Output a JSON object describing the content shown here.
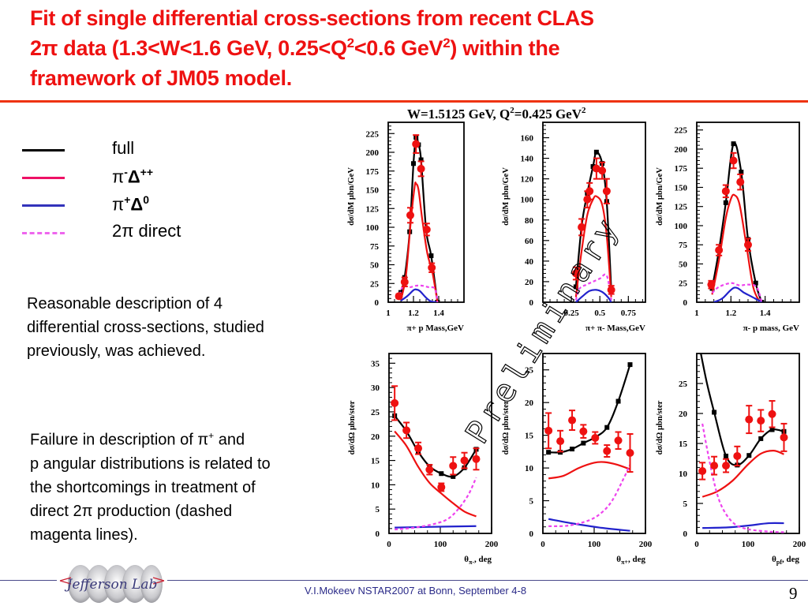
{
  "slide": {
    "title_line1": "Fit of single differential cross-sections from  recent CLAS",
    "title_line2_a": "2π data (1.3<W<1.6 GeV, 0.25<Q",
    "title_line2_sup1": "2",
    "title_line2_b": "<0.6 GeV",
    "title_line2_sup2": "2",
    "title_line2_c": ") within the",
    "title_line3": "framework of JM05 model.",
    "accent_color": "#ee1111",
    "watermark": "Preliminary",
    "kinematics_a": "W=1.5125 GeV, Q",
    "kinematics_sup1": "2",
    "kinematics_b": "=0.425 GeV",
    "kinematics_sup2": "2"
  },
  "legend": [
    {
      "label": "full",
      "color": "#000000",
      "style": "solid"
    },
    {
      "label_main": "π",
      "label_sup1": "-",
      "label_delta": "Δ",
      "label_sup2": "++",
      "color": "#ee1166",
      "style": "solid"
    },
    {
      "label_main": "π",
      "label_sup1": "+",
      "label_delta": "Δ",
      "label_sup2": "0",
      "color": "#3333bb",
      "style": "solid"
    },
    {
      "label": "2π direct",
      "color": "#ee66ee",
      "style": "dashed"
    }
  ],
  "notes": {
    "note1_lines": [
      "Reasonable description of 4",
      "differential cross-sections, studied",
      "previously, was achieved."
    ],
    "note2_line1_a": "Failure in description of π",
    "note2_line1_sup": "+",
    "note2_line1_b": " and",
    "note2_lines": [
      "p angular distributions is related to",
      "the shortcomings in treatment of",
      "direct 2π production (dashed",
      "magenta lines)."
    ]
  },
  "footer": {
    "logo_text": "Jefferson Lab",
    "text": "V.I.Mokeev   NSTAR2007 at Bonn, September  4-8",
    "page": "9"
  },
  "chart_data": [
    {
      "type": "line",
      "title": "",
      "xlabel": "π+ p Mass,GeV",
      "ylabel": "dσ/dM μbn/GeV",
      "xlim": [
        1.0,
        1.6
      ],
      "ylim": [
        0,
        240
      ],
      "xticks": [
        "1",
        "1.2",
        "1.4"
      ],
      "xtick_values": [
        1.0,
        1.2,
        1.4
      ],
      "yticks": [
        "0",
        "25",
        "50",
        "75",
        "100",
        "125",
        "150",
        "175",
        "200",
        "225"
      ],
      "ytick_values": [
        0,
        25,
        50,
        75,
        100,
        125,
        150,
        175,
        200,
        225
      ],
      "data_points": {
        "x": [
          1.085,
          1.13,
          1.175,
          1.22,
          1.26,
          1.305,
          1.345
        ],
        "y": [
          8,
          27,
          116,
          211,
          178,
          97,
          46
        ],
        "err": [
          3,
          6,
          10,
          12,
          10,
          8,
          6
        ]
      },
      "series": [
        {
          "name": "full",
          "color": "#000000",
          "x": [
            1.1,
            1.13,
            1.17,
            1.2,
            1.22,
            1.24,
            1.26,
            1.3,
            1.34,
            1.39
          ],
          "y": [
            13,
            33,
            94,
            185,
            220,
            210,
            190,
            97,
            62,
            0
          ],
          "markers": true
        },
        {
          "name": "π-Δ++",
          "color": "#ee1111",
          "x": [
            1.1,
            1.14,
            1.18,
            1.21,
            1.22,
            1.24,
            1.27,
            1.31,
            1.35,
            1.39
          ],
          "y": [
            3,
            35,
            110,
            155,
            158,
            150,
            110,
            65,
            40,
            0
          ]
        },
        {
          "name": "π+Δ0",
          "color": "#2222cc",
          "x": [
            1.1,
            1.15,
            1.2,
            1.22,
            1.25,
            1.3,
            1.34,
            1.39
          ],
          "y": [
            2,
            8,
            16,
            17,
            15,
            6,
            1,
            0
          ]
        },
        {
          "name": "2π direct",
          "color": "#ee44ee",
          "dashed": true,
          "x": [
            1.09,
            1.12,
            1.17,
            1.22,
            1.27,
            1.32,
            1.37,
            1.39
          ],
          "y": [
            10,
            22,
            20,
            22,
            22,
            20,
            18,
            0
          ]
        }
      ]
    },
    {
      "type": "line",
      "title": "",
      "xlabel": "π+ π- Mass,GeV",
      "ylabel": "dσ/dM μbn/GeV",
      "xlim": [
        0.0,
        0.9
      ],
      "ylim": [
        0,
        175
      ],
      "xticks": [
        "0.25",
        "0.5",
        "0.75"
      ],
      "xtick_values": [
        0.25,
        0.5,
        0.75
      ],
      "yticks": [
        "0",
        "20",
        "40",
        "60",
        "80",
        "100",
        "120",
        "140",
        "160"
      ],
      "ytick_values": [
        0,
        20,
        40,
        60,
        80,
        100,
        120,
        140,
        160
      ],
      "data_points": {
        "x": [
          0.29,
          0.34,
          0.39,
          0.41,
          0.47,
          0.52,
          0.56,
          0.6
        ],
        "y": [
          28,
          73,
          100,
          108,
          130,
          128,
          108,
          12
        ],
        "err": [
          6,
          8,
          8,
          8,
          10,
          8,
          12,
          4
        ]
      },
      "series": [
        {
          "name": "full",
          "color": "#000000",
          "x": [
            0.29,
            0.34,
            0.39,
            0.44,
            0.47,
            0.52,
            0.56,
            0.6
          ],
          "y": [
            15,
            74,
            106,
            132,
            146,
            135,
            98,
            12
          ],
          "markers": true
        },
        {
          "name": "π-Δ++",
          "color": "#ee1111",
          "x": [
            0.29,
            0.34,
            0.39,
            0.44,
            0.47,
            0.52,
            0.56,
            0.6
          ],
          "y": [
            5,
            50,
            85,
            100,
            103,
            95,
            65,
            5
          ]
        },
        {
          "name": "π+Δ0",
          "color": "#2222cc",
          "x": [
            0.29,
            0.35,
            0.41,
            0.47,
            0.52,
            0.57,
            0.6
          ],
          "y": [
            0,
            6,
            11,
            12,
            10,
            5,
            0
          ]
        },
        {
          "name": "2π direct",
          "color": "#ee44ee",
          "dashed": true,
          "x": [
            0.29,
            0.32,
            0.38,
            0.44,
            0.5,
            0.56,
            0.6
          ],
          "y": [
            2,
            13,
            17,
            20,
            23,
            26,
            2
          ]
        }
      ]
    },
    {
      "type": "line",
      "title": "",
      "xlabel": "π- p mass, GeV",
      "ylabel": "dσ/dM μbn/GeV",
      "xlim": [
        1.0,
        1.6
      ],
      "ylim": [
        0,
        235
      ],
      "xticks": [
        "1",
        "1.2",
        "1.4"
      ],
      "xtick_values": [
        1.0,
        1.2,
        1.4
      ],
      "yticks": [
        "0",
        "25",
        "50",
        "75",
        "100",
        "125",
        "150",
        "175",
        "200",
        "225"
      ],
      "ytick_values": [
        0,
        25,
        50,
        75,
        100,
        125,
        150,
        175,
        200,
        225
      ],
      "data_points": {
        "x": [
          1.085,
          1.13,
          1.17,
          1.215,
          1.255,
          1.3
        ],
        "y": [
          23,
          68,
          145,
          185,
          157,
          75
        ],
        "err": [
          5,
          7,
          8,
          10,
          10,
          8
        ]
      },
      "series": [
        {
          "name": "full",
          "color": "#000000",
          "x": [
            1.09,
            1.13,
            1.17,
            1.215,
            1.26,
            1.3,
            1.345,
            1.38
          ],
          "y": [
            18,
            68,
            130,
            207,
            170,
            82,
            25,
            0
          ],
          "markers": true
        },
        {
          "name": "π-Δ++",
          "color": "#ee1111",
          "x": [
            1.09,
            1.13,
            1.17,
            1.2,
            1.22,
            1.25,
            1.29,
            1.33,
            1.37
          ],
          "y": [
            10,
            55,
            110,
            135,
            140,
            128,
            75,
            20,
            0
          ]
        },
        {
          "name": "π+Δ0",
          "color": "#2222cc",
          "x": [
            1.1,
            1.15,
            1.22,
            1.28,
            1.34,
            1.38
          ],
          "y": [
            0,
            5,
            19,
            12,
            5,
            0
          ]
        },
        {
          "name": "2π direct",
          "color": "#ee44ee",
          "dashed": true,
          "x": [
            1.09,
            1.13,
            1.2,
            1.25,
            1.3,
            1.35,
            1.38
          ],
          "y": [
            12,
            20,
            25,
            22,
            23,
            20,
            0
          ]
        }
      ]
    },
    {
      "type": "line",
      "title": "",
      "xlabel": "θπ-, deg",
      "xlabel_main": "θ",
      "xlabel_sub": "π-",
      "xlabel_rest": ", deg",
      "ylabel": "dσ/dΩ μbn/ster",
      "xlim": [
        0,
        200
      ],
      "ylim": [
        0,
        37
      ],
      "xticks": [
        "0",
        "100",
        "200"
      ],
      "xtick_values": [
        0,
        100,
        200
      ],
      "yticks": [
        "0",
        "5",
        "10",
        "15",
        "20",
        "25",
        "30",
        "35"
      ],
      "ytick_values": [
        0,
        5,
        10,
        15,
        20,
        25,
        30,
        35
      ],
      "data_points": {
        "x": [
          11,
          34,
          57,
          79,
          102,
          125,
          147,
          170
        ],
        "y": [
          26.8,
          21.2,
          17.5,
          13.1,
          9.5,
          13.9,
          15.0,
          15.3
        ],
        "err": [
          3.5,
          1.6,
          1.2,
          1.0,
          0.8,
          1.8,
          1.6,
          2.2
        ]
      },
      "series": [
        {
          "name": "full",
          "color": "#000000",
          "x": [
            11,
            34,
            57,
            79,
            102,
            125,
            147,
            170
          ],
          "y": [
            24.2,
            21.0,
            16.8,
            13.8,
            12.3,
            11.7,
            13.5,
            17.3
          ],
          "markers": true
        },
        {
          "name": "π-Δ++",
          "color": "#ee1111",
          "x": [
            11,
            34,
            57,
            79,
            102,
            125,
            147,
            170
          ],
          "y": [
            21.0,
            18.0,
            13.7,
            10.4,
            8.2,
            6.2,
            4.5,
            3.5
          ]
        },
        {
          "name": "π+Δ0",
          "color": "#2222cc",
          "x": [
            11,
            60,
            110,
            170
          ],
          "y": [
            1.2,
            1.3,
            1.4,
            1.5
          ]
        },
        {
          "name": "2π direct",
          "color": "#ee44ee",
          "dashed": true,
          "x": [
            11,
            50,
            90,
            115,
            135,
            155,
            170
          ],
          "y": [
            0.8,
            1.2,
            2.0,
            3.0,
            5.0,
            8.0,
            11.5
          ]
        }
      ]
    },
    {
      "type": "line",
      "title": "",
      "xlabel": "θπ+, deg",
      "xlabel_main": "θ",
      "xlabel_sub": "π+",
      "xlabel_rest": ", deg",
      "ylabel": "dσ/dΩ μbn/ster",
      "xlim": [
        0,
        200
      ],
      "ylim": [
        0,
        27.5
      ],
      "xticks": [
        "0",
        "100",
        "200"
      ],
      "xtick_values": [
        0,
        100,
        200
      ],
      "yticks": [
        "0",
        "5",
        "10",
        "15",
        "20",
        "25"
      ],
      "ytick_values": [
        0,
        5,
        10,
        15,
        20,
        25
      ],
      "data_points": {
        "x": [
          11,
          34,
          57,
          79,
          102,
          125,
          147,
          170
        ],
        "y": [
          15.7,
          14.1,
          17.3,
          15.6,
          14.6,
          12.6,
          14.2,
          12.3
        ],
        "err": [
          2.7,
          1.6,
          1.5,
          1.0,
          0.9,
          0.9,
          1.3,
          2.9
        ]
      },
      "series": [
        {
          "name": "full",
          "color": "#000000",
          "x": [
            11,
            34,
            57,
            79,
            102,
            125,
            147,
            170
          ],
          "y": [
            12.4,
            12.4,
            12.9,
            13.8,
            14.7,
            16.2,
            20.2,
            25.8
          ],
          "markers": true
        },
        {
          "name": "π-Δ++",
          "color": "#ee1111",
          "x": [
            11,
            40,
            70,
            100,
            120,
            145,
            170
          ],
          "y": [
            8.4,
            8.8,
            10.0,
            10.8,
            10.9,
            10.5,
            9.8
          ]
        },
        {
          "name": "π+Δ0",
          "color": "#2222cc",
          "x": [
            11,
            60,
            110,
            170
          ],
          "y": [
            2.2,
            1.5,
            0.9,
            0.4
          ]
        },
        {
          "name": "2π direct",
          "color": "#ee44ee",
          "dashed": true,
          "x": [
            11,
            50,
            90,
            115,
            135,
            155,
            170
          ],
          "y": [
            1.1,
            1.2,
            2.0,
            3.2,
            5.0,
            8.0,
            10.5
          ]
        }
      ]
    },
    {
      "type": "line",
      "title": "",
      "xlabel": "θpf, deg",
      "xlabel_main": "θ",
      "xlabel_sub": "pf",
      "xlabel_rest": ", deg",
      "ylabel": "dσ/dΩ μbn/ster",
      "xlim": [
        0,
        200
      ],
      "ylim": [
        0,
        30
      ],
      "xticks": [
        "0",
        "100",
        "200"
      ],
      "xtick_values": [
        0,
        100,
        200
      ],
      "yticks": [
        "0",
        "5",
        "10",
        "15",
        "20",
        "25"
      ],
      "ytick_values": [
        0,
        5,
        10,
        15,
        20,
        25
      ],
      "data_points": {
        "x": [
          11,
          34,
          57,
          79,
          102,
          125,
          147,
          170
        ],
        "y": [
          10.4,
          11.3,
          11.3,
          12.9,
          19.0,
          18.8,
          19.9,
          16.0
        ],
        "err": [
          1.4,
          1.5,
          1.1,
          1.6,
          2.3,
          1.8,
          2.2,
          2.3
        ]
      },
      "series": [
        {
          "name": "full",
          "color": "#000000",
          "x": [
            8,
            20,
            34,
            57,
            79,
            102,
            125,
            147,
            170
          ],
          "y": [
            30,
            25,
            20.2,
            12.9,
            11.4,
            13.0,
            15.8,
            17.3,
            17.0
          ],
          "markers": true,
          "marker_from": 2
        },
        {
          "name": "π-Δ++",
          "color": "#ee1111",
          "x": [
            11,
            40,
            70,
            100,
            125,
            150,
            170
          ],
          "y": [
            6.1,
            7.0,
            8.8,
            11.5,
            13.3,
            13.8,
            13.2
          ]
        },
        {
          "name": "π+Δ0",
          "color": "#2222cc",
          "x": [
            11,
            60,
            100,
            140,
            170
          ],
          "y": [
            0.9,
            1.0,
            1.3,
            1.7,
            1.7
          ]
        },
        {
          "name": "2π direct",
          "color": "#ee44ee",
          "dashed": true,
          "x": [
            11,
            25,
            40,
            55,
            75,
            100,
            140,
            170
          ],
          "y": [
            18.3,
            12.0,
            6.5,
            3.5,
            1.5,
            0.7,
            0.3,
            0.2
          ]
        }
      ]
    }
  ]
}
